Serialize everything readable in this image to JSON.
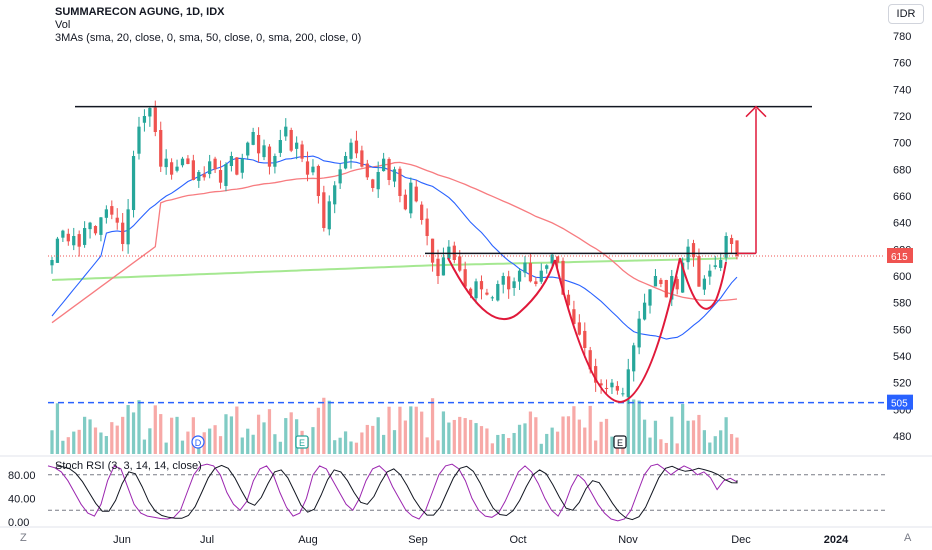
{
  "legend": {
    "title": "SUMMARECON AGUNG, 1D, IDX",
    "volume": "Vol",
    "mas": "3MAs (sma, 20, close, 0, sma, 50, close, 0, sma, 200, close, 0)"
  },
  "currency": "IDR",
  "stoch_label": "Stoch RSI (3, 3, 14, 14, close)",
  "corner_left": "Z",
  "corner_right": "A",
  "colors": {
    "up": "#26a69a",
    "down": "#ef5350",
    "vol_up": "#80cbc4",
    "vol_down": "#f7a9a7",
    "sma20": "#2962ff",
    "sma50": "#f77c80",
    "sma200": "#a5e891",
    "annotation": "#e0193a",
    "support": "#2962ff",
    "stoch_k": "#9c27b0",
    "stoch_d": "#131722"
  },
  "chart_data": [
    {
      "type": "candlestick",
      "title": "SUMMARECON AGUNG, 1D, IDX",
      "y_ticks": [
        "780",
        "760",
        "740",
        "720",
        "700",
        "680",
        "660",
        "640",
        "620",
        "600",
        "580",
        "560",
        "540",
        "520",
        "500",
        "480"
      ],
      "ylim": [
        472,
        792
      ],
      "x_ticks": [
        "Jun",
        "Jul",
        "Aug",
        "Sep",
        "Oct",
        "Nov",
        "Dec",
        "2024"
      ],
      "last_price": "615",
      "support_level": "505",
      "grid": false,
      "series_close": [
        612,
        628,
        634,
        626,
        630,
        622,
        636,
        640,
        632,
        644,
        650,
        646,
        640,
        624,
        650,
        690,
        712,
        720,
        726,
        708,
        682,
        688,
        676,
        682,
        688,
        684,
        672,
        678,
        674,
        686,
        680,
        670,
        684,
        690,
        676,
        688,
        700,
        708,
        692,
        698,
        682,
        690,
        702,
        712,
        694,
        700,
        688,
        676,
        682,
        660,
        636,
        656,
        668,
        680,
        690,
        700,
        692,
        682,
        674,
        666,
        678,
        688,
        672,
        680,
        660,
        650,
        670,
        656,
        642,
        630,
        610,
        600,
        614,
        622,
        612,
        604,
        592,
        586,
        596,
        590,
        586,
        584,
        594,
        600,
        590,
        596,
        604,
        610,
        596,
        594,
        604,
        608,
        616,
        610,
        586,
        578,
        564,
        556,
        546,
        530,
        520,
        518,
        516,
        520,
        514,
        512,
        530,
        548,
        568,
        580,
        590,
        600,
        594,
        584,
        600,
        590,
        610,
        622,
        614,
        592,
        598,
        604,
        608,
        612,
        630,
        624,
        615
      ],
      "series_stoch_k": [
        95,
        92,
        85,
        70,
        50,
        30,
        15,
        10,
        30,
        70,
        95,
        90,
        60,
        30,
        15,
        10,
        8,
        6,
        5,
        8,
        20,
        50,
        80,
        95,
        98,
        95,
        80,
        50,
        30,
        20,
        35,
        70,
        90,
        95,
        80,
        50,
        25,
        10,
        15,
        40,
        80,
        95,
        90,
        70,
        50,
        30,
        20,
        40,
        70,
        90,
        95,
        85,
        60,
        40,
        20,
        10,
        5,
        20,
        50,
        80,
        95,
        98,
        90,
        70,
        40,
        20,
        10,
        8,
        15,
        35,
        60,
        85,
        95,
        85,
        65,
        40,
        20,
        10,
        30,
        60,
        80,
        70,
        50,
        30,
        15,
        5,
        2,
        5,
        20,
        50,
        80,
        95,
        98,
        90,
        80,
        88,
        95,
        90,
        80,
        85,
        75,
        55,
        70,
        74,
        68
      ]
    }
  ]
}
